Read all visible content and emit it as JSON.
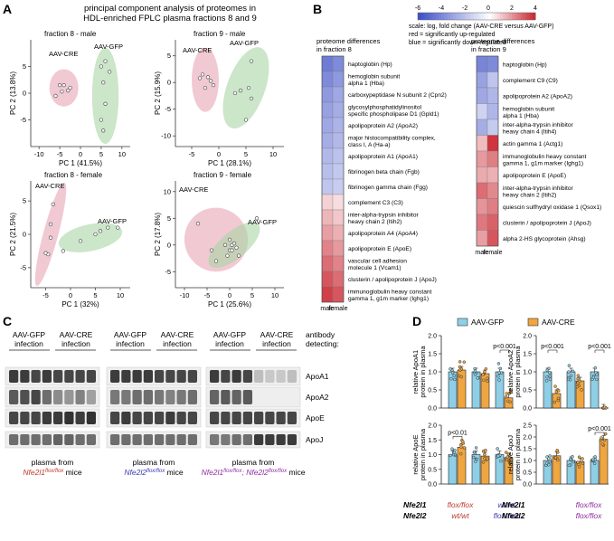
{
  "panels": {
    "a": "A",
    "b": "B",
    "c": "C",
    "d": "D"
  },
  "panelA": {
    "title": [
      "principal component analysis of proteomes in",
      "HDL-enriched FPLC plasma fractions 8 and 9"
    ],
    "plots": [
      {
        "title": "fraction 8 - male",
        "xlabel": "PC 1 (41.5%)",
        "ylabel": "PC 2 (13.8%)",
        "xticks": [
          "-10",
          "-5",
          "0",
          "5",
          "10"
        ],
        "yticks": [
          "5",
          "0",
          "-5"
        ],
        "groups": [
          {
            "label": "AAV-CRE",
            "color": "#e8a5b4",
            "points": [
              [
                -5,
                1.5
              ],
              [
                -4,
                1.5
              ],
              [
                -3,
                0.5
              ],
              [
                -2.5,
                1
              ],
              [
                -4.5,
                0.3
              ],
              [
                -6,
                -0.5
              ]
            ]
          },
          {
            "label": "AAV-GFP",
            "color": "#a9d5a5",
            "points": [
              [
                5,
                5
              ],
              [
                6,
                6
              ],
              [
                5.5,
                2
              ],
              [
                6,
                -2
              ],
              [
                5,
                -5
              ],
              [
                7,
                4
              ],
              [
                5.5,
                -7
              ]
            ]
          }
        ]
      },
      {
        "title": "fraction 9 - male",
        "xlabel": "PC 1 (28.1%)",
        "ylabel": "PC 2 (15.9%)",
        "xticks": [
          "-5",
          "0",
          "5",
          "10"
        ],
        "yticks": [
          "5",
          "0",
          "-5",
          "-10"
        ],
        "groups": [
          {
            "label": "AAV-CRE",
            "color": "#e8a5b4",
            "points": [
              [
                -3,
                1.5
              ],
              [
                -2,
                1
              ],
              [
                -1.5,
                0.3
              ],
              [
                -3.5,
                0.8
              ],
              [
                -1,
                -0.5
              ],
              [
                -2.5,
                -1
              ]
            ]
          },
          {
            "label": "AAV-GFP",
            "color": "#a9d5a5",
            "points": [
              [
                6,
                4
              ],
              [
                5.5,
                -1
              ],
              [
                4,
                -1.5
              ],
              [
                6,
                -3
              ],
              [
                3,
                -2
              ],
              [
                5,
                -7
              ]
            ]
          }
        ]
      },
      {
        "title": "fraction 8 - female",
        "xlabel": "PC 1 (32%)",
        "ylabel": "PC 2 (21.5%)",
        "xticks": [
          "-5",
          "0",
          "5",
          "10"
        ],
        "yticks": [
          "5",
          "0",
          "-5"
        ],
        "groups": [
          {
            "label": "AAV-CRE",
            "color": "#e8a5b4",
            "points": [
              [
                -3.5,
                4.5
              ],
              [
                -4,
                1.5
              ],
              [
                -4,
                -0.5
              ],
              [
                -4.5,
                -3
              ],
              [
                -5,
                -2.8
              ]
            ]
          },
          {
            "label": "AAV-GFP",
            "color": "#a9d5a5",
            "points": [
              [
                -1.5,
                -2.5
              ],
              [
                2,
                -1
              ],
              [
                5,
                0
              ],
              [
                6,
                0.5
              ],
              [
                7.5,
                1
              ],
              [
                9.5,
                1
              ]
            ]
          }
        ]
      },
      {
        "title": "fraction 9 - female",
        "xlabel": "PC 1 (25.6%)",
        "ylabel": "PC 2 (17.8%)",
        "xticks": [
          "-10",
          "-5",
          "0",
          "5",
          "10"
        ],
        "yticks": [
          "10",
          "5",
          "0",
          "-5"
        ],
        "groups": [
          {
            "label": "AAV-CRE",
            "color": "#e8a5b4",
            "points": [
              [
                -7,
                4
              ],
              [
                -4,
                -1
              ],
              [
                -1,
                0
              ],
              [
                0,
                -1
              ],
              [
                0.5,
                0
              ],
              [
                -0.5,
                -2
              ]
            ]
          },
          {
            "label": "AAV-GFP",
            "color": "#a9d5a5",
            "points": [
              [
                0,
                1
              ],
              [
                1,
                0.3
              ],
              [
                0.5,
                -1
              ],
              [
                1.5,
                -0.5
              ],
              [
                2,
                -2
              ],
              [
                6,
                5
              ],
              [
                -3,
                -3
              ]
            ]
          }
        ]
      }
    ]
  },
  "panelB": {
    "scale_ticks": [
      "-6",
      "-4",
      "-2",
      "0",
      "2",
      "4"
    ],
    "scale_text": [
      "scale: log, fold change (AAV-CRE versus AAV-GFP)",
      "red = significantly up-regulated",
      "blue = significantly down-regulated"
    ],
    "f8_title": [
      "proteome differences",
      "in fraction 8"
    ],
    "f9_title": [
      "proteome differences",
      "in fraction 9"
    ],
    "col_labels": [
      "male",
      "female"
    ],
    "f8_rows": [
      {
        "label": [
          "haptoglobin (Hp)"
        ],
        "v": [
          -4.5,
          -4
        ]
      },
      {
        "label": [
          "hemoglobin subunit",
          "alpha 1 (Hba)"
        ],
        "v": [
          -4,
          -3.5
        ]
      },
      {
        "label": [
          "carboxypeptidase N subunit 2 (Cpn2)"
        ],
        "v": [
          -3.5,
          -3
        ]
      },
      {
        "label": [
          "glycosylphosphatidylinositol",
          "specific phospholipase D1 (Gpld1)"
        ],
        "v": [
          -3.2,
          -2.8
        ]
      },
      {
        "label": [
          "apolipoprotein A2 (ApoA2)"
        ],
        "v": [
          -3,
          -2.6
        ]
      },
      {
        "label": [
          "major histocompatibility complex,",
          "class I, A (Ha-a)"
        ],
        "v": [
          -2.8,
          -2.4
        ]
      },
      {
        "label": [
          "apolipoprotein A1 (ApoA1)"
        ],
        "v": [
          -2.4,
          -2.1
        ]
      },
      {
        "label": [
          "fibrinogen beta chain (Fgb)"
        ],
        "v": [
          -2.2,
          -1.9
        ]
      },
      {
        "label": [
          "fibrinogen gamma chain (Fgg)"
        ],
        "v": [
          -2,
          -1.7
        ]
      },
      {
        "label": [
          "complement C3 (C3)"
        ],
        "v": [
          0.8,
          0.6
        ]
      },
      {
        "label": [
          "inter-alpha-trypsin inhibitor",
          "heavy chain 2 (Itih2)"
        ],
        "v": [
          1.3,
          1
        ]
      },
      {
        "label": [
          "apolipoprotein A4 (ApoA4)"
        ],
        "v": [
          1.7,
          1.4
        ]
      },
      {
        "label": [
          "apolipoprotein E (ApoE)"
        ],
        "v": [
          2.2,
          1.8
        ]
      },
      {
        "label": [
          "vascular cell adhesion",
          "molecule 1 (Vcam1)"
        ],
        "v": [
          2.6,
          2.2
        ]
      },
      {
        "label": [
          "clusterin / apolipoprotein J (ApoJ)"
        ],
        "v": [
          3,
          2.6
        ]
      },
      {
        "label": [
          "immunoglobulin heavy constant",
          "gamma 1, g1m marker (Ighg1)"
        ],
        "v": [
          3.4,
          3
        ]
      }
    ],
    "f9_rows": [
      {
        "label": [
          "haptoglobin (Hp)"
        ],
        "v": [
          -4.2,
          -4
        ]
      },
      {
        "label": [
          "complement C9 (C9)"
        ],
        "v": [
          -3.2,
          -2
        ]
      },
      {
        "label": [
          "apolipoprotein A2 (ApoA2)"
        ],
        "v": [
          -3,
          -2.5
        ]
      },
      {
        "label": [
          "hemoglobin subunit",
          "alpha 1 (Hba)"
        ],
        "v": [
          -1.5,
          -2.5
        ]
      },
      {
        "label": [
          "inter-alpha-trypsin inhibitor",
          "heavy chain 4 (Itih4)"
        ],
        "v": [
          -2.8,
          -1.8
        ]
      },
      {
        "label": [
          "actin gamma 1 (Actg1)"
        ],
        "v": [
          1.2,
          3.6
        ]
      },
      {
        "label": [
          "immunoglobulin heavy constant",
          "gamma 1, g1m marker (Ighg1)"
        ],
        "v": [
          1.8,
          2.3
        ]
      },
      {
        "label": [
          "apolipoprotein E (ApoE)"
        ],
        "v": [
          1.5,
          1.4
        ]
      },
      {
        "label": [
          "inter-alpha-trypsin inhibitor",
          "heavy chain 2 (Itih2)"
        ],
        "v": [
          2.6,
          2.1
        ]
      },
      {
        "label": [
          "quiescin sulfhydryl oxidase 1 (Qsox1)"
        ],
        "v": [
          1.9,
          2.3
        ]
      },
      {
        "label": [
          "clusterin / apolipoprotein J (ApoJ)"
        ],
        "v": [
          2.4,
          2.8
        ]
      },
      {
        "label": [
          "alpha 2-HS glycoprotein (Ahsg)"
        ],
        "v": [
          1.7,
          3
        ]
      }
    ]
  },
  "panelC": {
    "groups": [
      {
        "gfp": [
          "AAV-GFP",
          "infection"
        ],
        "cre": [
          "AAV-CRE",
          "infection"
        ],
        "footer": "plasma from",
        "genotype": "Nfe2l1",
        "sup": "flox/flox",
        "suffix": " mice",
        "gcolor": "#c0392b",
        "suffix_prefix": ""
      },
      {
        "gfp": [
          "AAV-GFP",
          "infection"
        ],
        "cre": [
          "AAV-CRE",
          "infection"
        ],
        "footer": "plasma from",
        "genotype": "Nfe2l2",
        "sup": "flox/flox",
        "suffix": " mice",
        "gcolor": "#3b3bb3",
        "suffix_prefix": ""
      },
      {
        "gfp": [
          "AAV-GFP",
          "infection"
        ],
        "cre": [
          "AAV-CRE",
          "infection"
        ],
        "footer": "plasma from",
        "genotype": "Nfe2l1",
        "sup": "flox/flox",
        "suffix": " mice",
        "gcolor": "#8e2fa3",
        "suffix_prefix": "; Nfe2l2",
        "sup2": "flox/flox"
      }
    ],
    "antibody_header": [
      "antibody",
      "detecting:"
    ],
    "rows": [
      "ApoA1",
      "ApoA2",
      "ApoE",
      "ApoJ"
    ],
    "intensity": [
      [
        [
          0.85,
          0.85,
          0.8,
          0.85,
          0.8,
          0.8,
          0.8,
          0.8
        ],
        [
          0.85,
          0.85,
          0.85,
          0.85,
          0.8,
          0.8,
          0.8,
          0.8
        ],
        [
          0.85,
          0.8,
          0.85,
          0.8,
          0.2,
          0.15,
          0.15,
          0.2
        ]
      ],
      [
        [
          0.7,
          0.75,
          0.8,
          0.6,
          0.45,
          0.4,
          0.5,
          0.35
        ],
        [
          0.55,
          0.55,
          0.6,
          0.6,
          0.55,
          0.5,
          0.55,
          0.6
        ],
        [
          0.65,
          0.7,
          0.65,
          0.7,
          0.0,
          0.0,
          0.0,
          0.0
        ]
      ],
      [
        [
          0.8,
          0.8,
          0.8,
          0.85,
          0.85,
          0.9,
          0.85,
          0.9
        ],
        [
          0.8,
          0.85,
          0.8,
          0.8,
          0.8,
          0.85,
          0.8,
          0.8
        ],
        [
          0.8,
          0.8,
          0.8,
          0.8,
          0.8,
          0.8,
          0.8,
          0.8
        ]
      ],
      [
        [
          0.6,
          0.6,
          0.6,
          0.6,
          0.65,
          0.65,
          0.6,
          0.6
        ],
        [
          0.6,
          0.6,
          0.6,
          0.6,
          0.6,
          0.6,
          0.6,
          0.6
        ],
        [
          0.55,
          0.55,
          0.6,
          0.6,
          0.85,
          0.85,
          0.85,
          0.85
        ]
      ]
    ]
  },
  "panelD": {
    "legend": [
      {
        "label": "AAV-GFP",
        "color": "#8ecfe6"
      },
      {
        "label": "AAV-CRE",
        "color": "#f0a640"
      }
    ],
    "plots": [
      {
        "ylabel": [
          "relative ApoA1",
          "protein in plasma"
        ],
        "yticks": [
          "0.0",
          "0.5",
          "1.0",
          "1.5",
          "2.0"
        ],
        "ymax": 2.0,
        "means": [
          [
            1.0,
            1.05
          ],
          [
            1.0,
            0.95
          ],
          [
            1.0,
            0.28
          ]
        ],
        "sig": [
          {
            "pair": 2,
            "text": "p<0.001"
          }
        ]
      },
      {
        "ylabel": [
          "relative ApoA2",
          "protein in plasma"
        ],
        "yticks": [
          "0.0",
          "0.5",
          "1.0",
          "1.5",
          "2.0"
        ],
        "ymax": 2.0,
        "means": [
          [
            1.0,
            0.4
          ],
          [
            1.0,
            0.75
          ],
          [
            1.0,
            0.0
          ]
        ],
        "sig": [
          {
            "pair": 0,
            "text": "p<0.001"
          },
          {
            "pair": 2,
            "text": "p<0.001"
          }
        ]
      },
      {
        "ylabel": [
          "relative ApoE",
          "protein in plasma"
        ],
        "yticks": [
          "0.0",
          "0.5",
          "1.0",
          "1.5",
          "2.0"
        ],
        "ymax": 2.0,
        "means": [
          [
            1.0,
            1.25
          ],
          [
            1.0,
            0.95
          ],
          [
            1.0,
            0.9
          ]
        ],
        "sig": [
          {
            "pair": 0,
            "text": "p<0.01"
          }
        ]
      },
      {
        "ylabel": [
          "relative ApoJ",
          "protein in plasma"
        ],
        "yticks": [
          "0.0",
          "0.5",
          "1.0",
          "1.5",
          "2.0",
          "2.5"
        ],
        "ymax": 2.5,
        "means": [
          [
            1.0,
            1.2
          ],
          [
            1.0,
            0.95
          ],
          [
            1.0,
            1.9
          ]
        ],
        "sig": [
          {
            "pair": 2,
            "text": "p<0.001"
          }
        ]
      }
    ],
    "genotypes": {
      "row1_label": "Nfe2l1",
      "row2_label": "Nfe2l2",
      "cols": [
        {
          "r1": "flox/flox",
          "r2": "wt/wt",
          "c1": "#c0392b",
          "c2": "#c0392b"
        },
        {
          "r1": "wt/wt",
          "r2": "flox/flox",
          "c1": "#3b3bb3",
          "c2": "#3b3bb3"
        },
        {
          "r1": "flox/flox",
          "r2": "flox/flox",
          "c1": "#8e2fa3",
          "c2": "#8e2fa3"
        }
      ]
    }
  }
}
